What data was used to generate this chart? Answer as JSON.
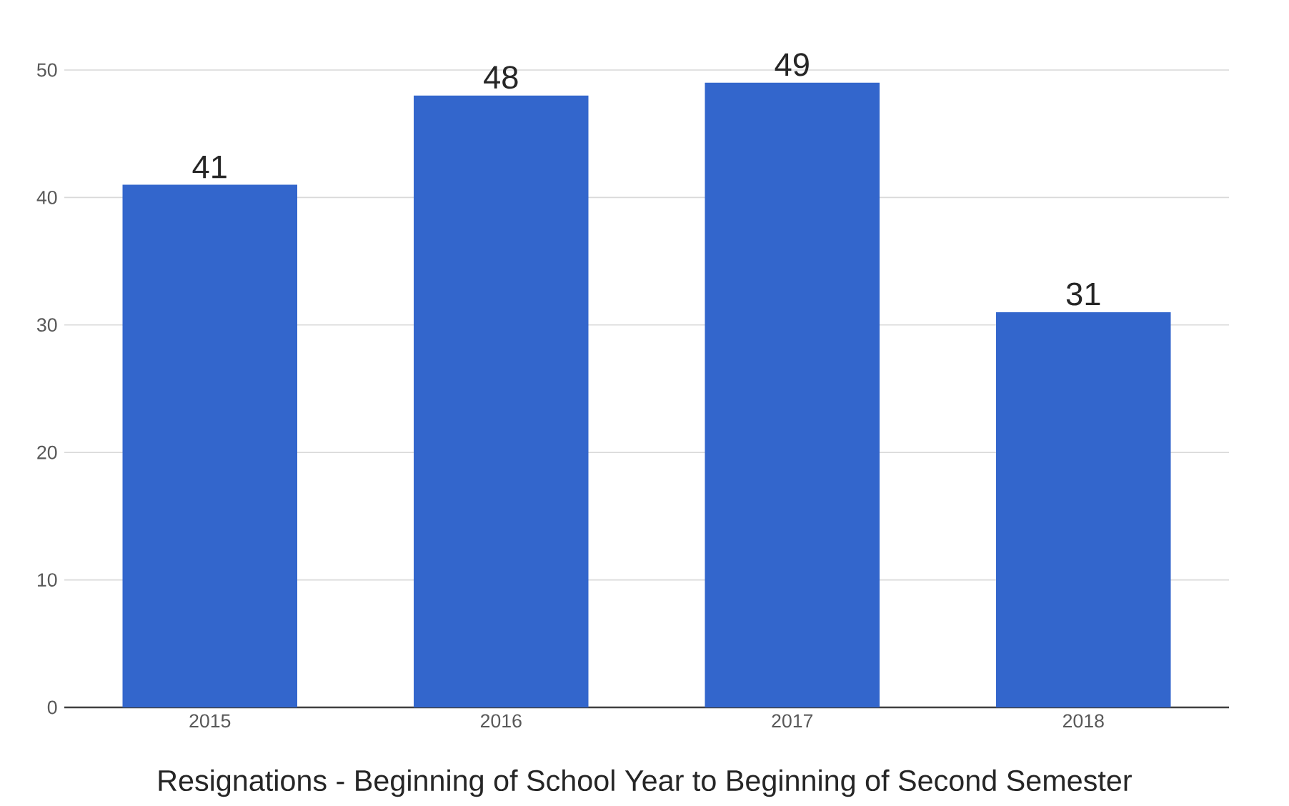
{
  "chart_data": {
    "type": "bar",
    "title": "Resignations - Beginning of School Year to Beginning of Second Semester",
    "categories": [
      "2015",
      "2016",
      "2017",
      "2018"
    ],
    "values": [
      41,
      48,
      49,
      31
    ],
    "color": "#3366cc",
    "ylim": [
      0,
      50
    ],
    "yticks": [
      0,
      10,
      20,
      30,
      40,
      50
    ],
    "grid": "y",
    "data_labels": true
  }
}
